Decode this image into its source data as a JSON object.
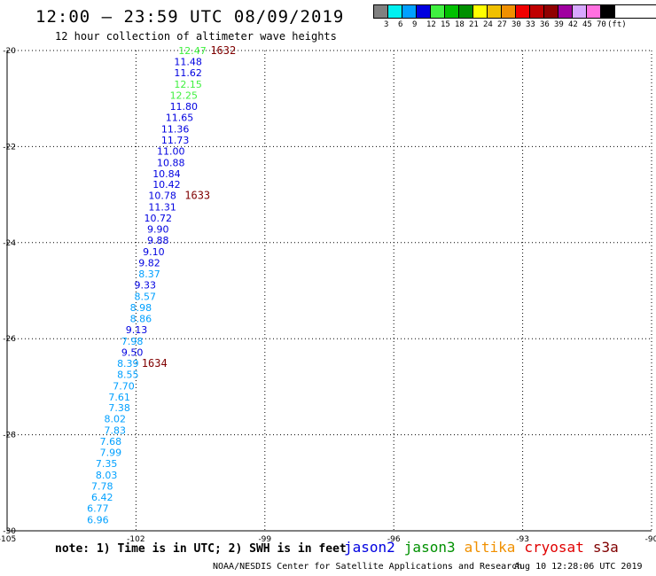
{
  "header": {
    "title": "12:00 — 23:59 UTC 08/09/2019",
    "subtitle": "12 hour collection of altimeter wave heights"
  },
  "colorbar": {
    "colors": [
      "#808080",
      "#00f0f0",
      "#00a0ff",
      "#0000e0",
      "#40f040",
      "#00c000",
      "#009000",
      "#ffff00",
      "#f0c000",
      "#f09000",
      "#f00000",
      "#c00000",
      "#900000",
      "#a000a0",
      "#d8a8ff",
      "#ff70e0",
      "#000000"
    ],
    "labels": [
      "3",
      "6",
      "9",
      "12",
      "15",
      "18",
      "21",
      "24",
      "27",
      "30",
      "33",
      "36",
      "39",
      "42",
      "45",
      "70",
      "(ft)"
    ]
  },
  "chart_data": {
    "type": "scatter",
    "xlim": [
      -105,
      -90
    ],
    "ylim": [
      -30,
      -20
    ],
    "x_ticks": [
      -105,
      -102,
      -99,
      -96,
      -93,
      -90
    ],
    "y_ticks": [
      -20,
      -22,
      -24,
      -26,
      -28,
      -30
    ],
    "grid": true,
    "series": [
      {
        "satellite": "jason2",
        "points": [
          {
            "lon": -101.1,
            "lat": -20.0,
            "value": "12.47",
            "color": "#40f040"
          },
          {
            "lon": -101.2,
            "lat": -20.23,
            "value": "11.48",
            "color": "#0000e0"
          },
          {
            "lon": -101.2,
            "lat": -20.46,
            "value": "11.62",
            "color": "#0000e0"
          },
          {
            "lon": -101.2,
            "lat": -20.7,
            "value": "12.15",
            "color": "#40f040"
          },
          {
            "lon": -101.3,
            "lat": -20.93,
            "value": "12.25",
            "color": "#40f040"
          },
          {
            "lon": -101.3,
            "lat": -21.16,
            "value": "11.80",
            "color": "#0000e0"
          },
          {
            "lon": -101.4,
            "lat": -21.39,
            "value": "11.65",
            "color": "#0000e0"
          },
          {
            "lon": -101.5,
            "lat": -21.63,
            "value": "11.36",
            "color": "#0000e0"
          },
          {
            "lon": -101.5,
            "lat": -21.86,
            "value": "11.73",
            "color": "#0000e0"
          },
          {
            "lon": -101.6,
            "lat": -22.09,
            "value": "11.00",
            "color": "#0000e0"
          },
          {
            "lon": -101.6,
            "lat": -22.33,
            "value": "10.88",
            "color": "#0000e0"
          },
          {
            "lon": -101.7,
            "lat": -22.56,
            "value": "10.84",
            "color": "#0000e0"
          },
          {
            "lon": -101.7,
            "lat": -22.79,
            "value": "10.42",
            "color": "#0000e0"
          },
          {
            "lon": -101.8,
            "lat": -23.02,
            "value": "10.78",
            "color": "#0000e0"
          },
          {
            "lon": -101.8,
            "lat": -23.26,
            "value": "11.31",
            "color": "#0000e0"
          },
          {
            "lon": -101.9,
            "lat": -23.49,
            "value": "10.72",
            "color": "#0000e0"
          },
          {
            "lon": -101.9,
            "lat": -23.72,
            "value": "9.90",
            "color": "#0000e0"
          },
          {
            "lon": -101.9,
            "lat": -23.95,
            "value": "9.88",
            "color": "#0000e0"
          },
          {
            "lon": -102.0,
            "lat": -24.19,
            "value": "9.10",
            "color": "#0000e0"
          },
          {
            "lon": -102.1,
            "lat": -24.42,
            "value": "9.82",
            "color": "#0000e0"
          },
          {
            "lon": -102.1,
            "lat": -24.65,
            "value": "8.37",
            "color": "#00a0ff"
          },
          {
            "lon": -102.2,
            "lat": -24.88,
            "value": "9.33",
            "color": "#0000e0"
          },
          {
            "lon": -102.2,
            "lat": -25.12,
            "value": "8.57",
            "color": "#00a0ff"
          },
          {
            "lon": -102.3,
            "lat": -25.35,
            "value": "8.98",
            "color": "#00a0ff"
          },
          {
            "lon": -102.3,
            "lat": -25.58,
            "value": "8.86",
            "color": "#00a0ff"
          },
          {
            "lon": -102.4,
            "lat": -25.81,
            "value": "9.13",
            "color": "#0000e0"
          },
          {
            "lon": -102.5,
            "lat": -26.05,
            "value": "7.98",
            "color": "#00a0ff"
          },
          {
            "lon": -102.5,
            "lat": -26.28,
            "value": "9.50",
            "color": "#0000e0"
          },
          {
            "lon": -102.6,
            "lat": -26.51,
            "value": "8.39",
            "color": "#00a0ff"
          },
          {
            "lon": -102.6,
            "lat": -26.74,
            "value": "8.55",
            "color": "#00a0ff"
          },
          {
            "lon": -102.7,
            "lat": -26.98,
            "value": "7.70",
            "color": "#00a0ff"
          },
          {
            "lon": -102.8,
            "lat": -27.21,
            "value": "7.61",
            "color": "#00a0ff"
          },
          {
            "lon": -102.8,
            "lat": -27.44,
            "value": "7.38",
            "color": "#00a0ff"
          },
          {
            "lon": -102.9,
            "lat": -27.67,
            "value": "8.02",
            "color": "#00a0ff"
          },
          {
            "lon": -102.9,
            "lat": -27.91,
            "value": "7.83",
            "color": "#00a0ff"
          },
          {
            "lon": -103.0,
            "lat": -28.14,
            "value": "7.68",
            "color": "#00a0ff"
          },
          {
            "lon": -103.0,
            "lat": -28.37,
            "value": "7.99",
            "color": "#00a0ff"
          },
          {
            "lon": -103.1,
            "lat": -28.6,
            "value": "7.35",
            "color": "#00a0ff"
          },
          {
            "lon": -103.1,
            "lat": -28.84,
            "value": "8.03",
            "color": "#00a0ff"
          },
          {
            "lon": -103.2,
            "lat": -29.07,
            "value": "7.78",
            "color": "#00a0ff"
          },
          {
            "lon": -103.2,
            "lat": -29.3,
            "value": "6.42",
            "color": "#00a0ff"
          },
          {
            "lon": -103.3,
            "lat": -29.53,
            "value": "6.77",
            "color": "#00a0ff"
          },
          {
            "lon": -103.3,
            "lat": -29.77,
            "value": "6.96",
            "color": "#00a0ff"
          }
        ]
      }
    ],
    "time_labels": [
      {
        "lon": -100.3,
        "lat": -20.0,
        "text": "1632"
      },
      {
        "lon": -100.9,
        "lat": -23.02,
        "text": "1633"
      },
      {
        "lon": -101.9,
        "lat": -26.51,
        "text": "1634"
      }
    ],
    "time_label_color": "#800000"
  },
  "footer": {
    "note": "note: 1) Time is in UTC; 2) SWH is in feet",
    "satellites": [
      {
        "name": "jason2",
        "color": "#0000e0"
      },
      {
        "name": "jason3",
        "color": "#009000"
      },
      {
        "name": "altika",
        "color": "#f09000"
      },
      {
        "name": "cryosat",
        "color": "#e00000"
      },
      {
        "name": "s3a",
        "color": "#800000"
      }
    ],
    "credit": "NOAA/NESDIS Center for Satellite Applications and Research",
    "timestamp": "Aug 10 12:28:06 UTC 2019"
  }
}
